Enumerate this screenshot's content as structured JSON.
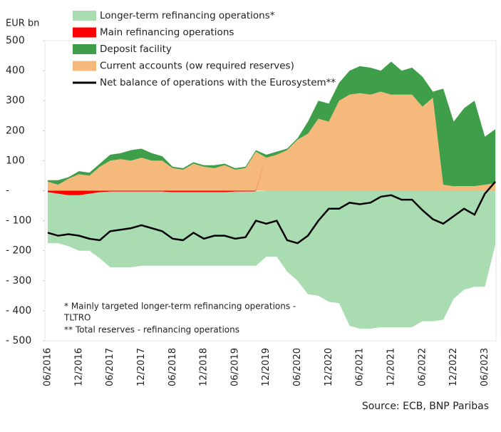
{
  "chart_data": {
    "type": "stacked_area",
    "y_label": "EUR bn",
    "categories": [
      "06/2016",
      null,
      null,
      "12/2016",
      null,
      null,
      "06/2017",
      null,
      null,
      "12/2017",
      null,
      null,
      "06/2018",
      null,
      null,
      "12/2018",
      null,
      null,
      "06/2019",
      null,
      null,
      "12/2019",
      null,
      null,
      "06/2020",
      null,
      null,
      "12/2020",
      null,
      null,
      "06/2021",
      null,
      null,
      "12/2021",
      null,
      null,
      "06/2022",
      null,
      null,
      "12/2022",
      null,
      null,
      "06/2023",
      null
    ],
    "series": [
      {
        "name": "Longer-term refinancing operations*",
        "color": "#aadcb2",
        "values": [
          -170,
          -165,
          -170,
          -185,
          -190,
          -220,
          -252,
          -252,
          -252,
          -247,
          -247,
          -247,
          -245,
          -245,
          -245,
          -245,
          -245,
          -245,
          -247,
          -247,
          -248,
          -220,
          -220,
          -270,
          -300,
          -345,
          -350,
          -370,
          -375,
          -450,
          -460,
          -460,
          -455,
          -455,
          -455,
          -455,
          -435,
          -435,
          -430,
          -360,
          -330,
          -320,
          -320,
          -180
        ]
      },
      {
        "name": "Main refinancing operations",
        "color": "#ff0000",
        "values": [
          -5,
          -10,
          -15,
          -15,
          -10,
          -5,
          -3,
          -3,
          -3,
          -3,
          -3,
          -3,
          -5,
          -5,
          -5,
          -5,
          -5,
          -5,
          -3,
          -3,
          -2,
          0,
          0,
          0,
          0,
          0,
          0,
          0,
          0,
          0,
          0,
          0,
          0,
          0,
          0,
          0,
          0,
          0,
          0,
          0,
          0,
          0,
          0,
          0
        ]
      },
      {
        "name": "Deposit facility",
        "color": "#3f9e4a",
        "values": [
          5,
          15,
          5,
          10,
          10,
          10,
          20,
          20,
          35,
          30,
          25,
          15,
          5,
          5,
          5,
          5,
          10,
          5,
          5,
          5,
          5,
          10,
          10,
          5,
          5,
          40,
          60,
          60,
          60,
          80,
          90,
          90,
          70,
          110,
          80,
          90,
          100,
          20,
          320,
          215,
          260,
          285,
          160,
          180
        ]
      },
      {
        "name": "Current accounts (ow required reserves)",
        "color": "#f5b97c",
        "values": [
          30,
          20,
          40,
          55,
          50,
          80,
          100,
          105,
          100,
          110,
          100,
          100,
          75,
          70,
          90,
          80,
          75,
          85,
          70,
          75,
          130,
          110,
          120,
          135,
          170,
          190,
          240,
          230,
          300,
          320,
          325,
          320,
          330,
          320,
          320,
          320,
          280,
          310,
          20,
          15,
          15,
          15,
          20,
          25
        ]
      },
      {
        "name": "Net balance of operations with the Eurosystem**",
        "type": "line",
        "color": "#000000",
        "values": [
          -140,
          -150,
          -145,
          -150,
          -160,
          -165,
          -135,
          -130,
          -125,
          -115,
          -125,
          -135,
          -160,
          -165,
          -140,
          -160,
          -150,
          -150,
          -160,
          -155,
          -100,
          -110,
          -100,
          -165,
          -175,
          -150,
          -100,
          -60,
          -60,
          -40,
          -45,
          -40,
          -20,
          -15,
          -30,
          -30,
          -65,
          -95,
          -110,
          -85,
          -60,
          -80,
          -10,
          30
        ]
      }
    ],
    "ylim": [
      -500,
      500
    ],
    "yticks": [
      {
        "value": -500,
        "label": "- 500"
      },
      {
        "value": -400,
        "label": "- 400"
      },
      {
        "value": -300,
        "label": "- 300"
      },
      {
        "value": -200,
        "label": "- 200"
      },
      {
        "value": -100,
        "label": "- 100"
      },
      {
        "value": 0,
        "label": "-"
      },
      100,
      200,
      300,
      400,
      500
    ],
    "annotations": [
      "* Mainly targeted longer-term refinancing operations -",
      "TLTRO",
      "** Total reserves - refinancing operations"
    ],
    "source": "Source: ECB, BNP Paribas"
  }
}
